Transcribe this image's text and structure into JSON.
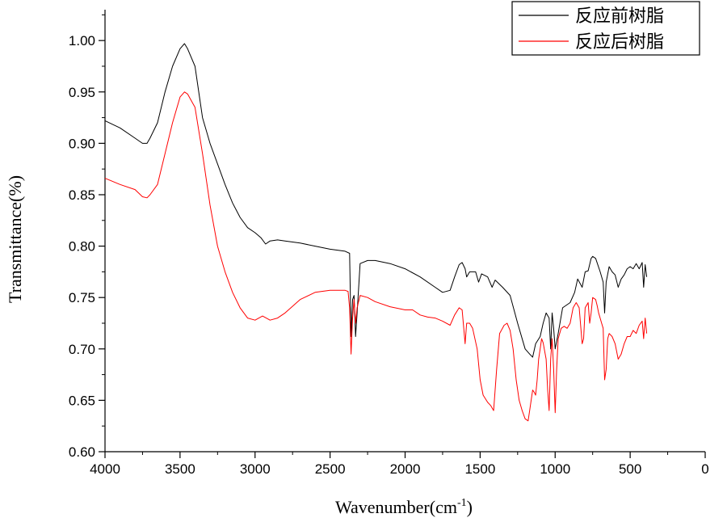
{
  "chart_data": {
    "type": "line",
    "xlabel": "Wavenumber(cm",
    "xlabel_sup": "-1",
    "xlabel_close": ")",
    "ylabel": "Transmittance(%)",
    "xlim": [
      4000,
      0
    ],
    "ylim": [
      0.6,
      1.03
    ],
    "x_ticks": [
      "4000",
      "3500",
      "3000",
      "2500",
      "2000",
      "1500",
      "1000",
      "500",
      "0"
    ],
    "y_ticks": [
      "0.60",
      "0.65",
      "0.70",
      "0.75",
      "0.80",
      "0.85",
      "0.90",
      "0.95",
      "1.00"
    ],
    "legend_position": "top-right",
    "series": [
      {
        "name": "反应前树脂",
        "color": "#000000",
        "points": [
          [
            4000,
            0.922
          ],
          [
            3900,
            0.915
          ],
          [
            3800,
            0.905
          ],
          [
            3750,
            0.9
          ],
          [
            3720,
            0.9
          ],
          [
            3700,
            0.905
          ],
          [
            3650,
            0.92
          ],
          [
            3600,
            0.95
          ],
          [
            3550,
            0.975
          ],
          [
            3500,
            0.992
          ],
          [
            3470,
            0.997
          ],
          [
            3450,
            0.992
          ],
          [
            3400,
            0.975
          ],
          [
            3350,
            0.925
          ],
          [
            3300,
            0.9
          ],
          [
            3250,
            0.88
          ],
          [
            3200,
            0.86
          ],
          [
            3150,
            0.842
          ],
          [
            3100,
            0.828
          ],
          [
            3050,
            0.818
          ],
          [
            3000,
            0.813
          ],
          [
            2960,
            0.808
          ],
          [
            2930,
            0.802
          ],
          [
            2900,
            0.805
          ],
          [
            2850,
            0.806
          ],
          [
            2800,
            0.805
          ],
          [
            2700,
            0.803
          ],
          [
            2600,
            0.8
          ],
          [
            2500,
            0.797
          ],
          [
            2400,
            0.795
          ],
          [
            2370,
            0.793
          ],
          [
            2360,
            0.712
          ],
          [
            2350,
            0.748
          ],
          [
            2340,
            0.752
          ],
          [
            2330,
            0.712
          ],
          [
            2320,
            0.735
          ],
          [
            2300,
            0.783
          ],
          [
            2250,
            0.786
          ],
          [
            2200,
            0.786
          ],
          [
            2100,
            0.783
          ],
          [
            2000,
            0.778
          ],
          [
            1900,
            0.77
          ],
          [
            1800,
            0.76
          ],
          [
            1750,
            0.755
          ],
          [
            1700,
            0.757
          ],
          [
            1670,
            0.77
          ],
          [
            1640,
            0.782
          ],
          [
            1620,
            0.784
          ],
          [
            1600,
            0.778
          ],
          [
            1590,
            0.77
          ],
          [
            1570,
            0.775
          ],
          [
            1530,
            0.775
          ],
          [
            1510,
            0.765
          ],
          [
            1490,
            0.773
          ],
          [
            1450,
            0.77
          ],
          [
            1420,
            0.76
          ],
          [
            1400,
            0.767
          ],
          [
            1350,
            0.76
          ],
          [
            1300,
            0.752
          ],
          [
            1250,
            0.725
          ],
          [
            1200,
            0.7
          ],
          [
            1170,
            0.695
          ],
          [
            1150,
            0.692
          ],
          [
            1130,
            0.705
          ],
          [
            1100,
            0.712
          ],
          [
            1080,
            0.725
          ],
          [
            1060,
            0.735
          ],
          [
            1040,
            0.73
          ],
          [
            1030,
            0.7
          ],
          [
            1020,
            0.735
          ],
          [
            1010,
            0.72
          ],
          [
            1000,
            0.7
          ],
          [
            980,
            0.715
          ],
          [
            950,
            0.74
          ],
          [
            900,
            0.745
          ],
          [
            870,
            0.755
          ],
          [
            850,
            0.768
          ],
          [
            820,
            0.76
          ],
          [
            800,
            0.775
          ],
          [
            780,
            0.776
          ],
          [
            760,
            0.788
          ],
          [
            750,
            0.79
          ],
          [
            730,
            0.788
          ],
          [
            700,
            0.775
          ],
          [
            680,
            0.765
          ],
          [
            670,
            0.735
          ],
          [
            660,
            0.765
          ],
          [
            640,
            0.78
          ],
          [
            620,
            0.775
          ],
          [
            600,
            0.772
          ],
          [
            580,
            0.76
          ],
          [
            560,
            0.768
          ],
          [
            540,
            0.772
          ],
          [
            520,
            0.778
          ],
          [
            500,
            0.78
          ],
          [
            480,
            0.778
          ],
          [
            460,
            0.783
          ],
          [
            440,
            0.778
          ],
          [
            420,
            0.784
          ],
          [
            410,
            0.76
          ],
          [
            400,
            0.782
          ],
          [
            390,
            0.77
          ]
        ]
      },
      {
        "name": "反应后树脂",
        "color": "#ff0000",
        "points": [
          [
            4000,
            0.866
          ],
          [
            3900,
            0.86
          ],
          [
            3800,
            0.855
          ],
          [
            3750,
            0.848
          ],
          [
            3720,
            0.847
          ],
          [
            3700,
            0.85
          ],
          [
            3650,
            0.86
          ],
          [
            3600,
            0.89
          ],
          [
            3550,
            0.92
          ],
          [
            3500,
            0.945
          ],
          [
            3470,
            0.95
          ],
          [
            3450,
            0.948
          ],
          [
            3400,
            0.935
          ],
          [
            3350,
            0.89
          ],
          [
            3300,
            0.84
          ],
          [
            3250,
            0.8
          ],
          [
            3200,
            0.775
          ],
          [
            3150,
            0.755
          ],
          [
            3100,
            0.74
          ],
          [
            3050,
            0.73
          ],
          [
            3000,
            0.728
          ],
          [
            2950,
            0.732
          ],
          [
            2900,
            0.728
          ],
          [
            2850,
            0.73
          ],
          [
            2800,
            0.735
          ],
          [
            2700,
            0.748
          ],
          [
            2600,
            0.755
          ],
          [
            2500,
            0.757
          ],
          [
            2400,
            0.757
          ],
          [
            2380,
            0.756
          ],
          [
            2370,
            0.74
          ],
          [
            2360,
            0.695
          ],
          [
            2350,
            0.73
          ],
          [
            2340,
            0.748
          ],
          [
            2330,
            0.725
          ],
          [
            2320,
            0.74
          ],
          [
            2300,
            0.752
          ],
          [
            2250,
            0.75
          ],
          [
            2200,
            0.746
          ],
          [
            2100,
            0.741
          ],
          [
            2000,
            0.738
          ],
          [
            1950,
            0.738
          ],
          [
            1900,
            0.733
          ],
          [
            1850,
            0.731
          ],
          [
            1800,
            0.73
          ],
          [
            1750,
            0.727
          ],
          [
            1700,
            0.723
          ],
          [
            1670,
            0.733
          ],
          [
            1640,
            0.74
          ],
          [
            1620,
            0.738
          ],
          [
            1610,
            0.722
          ],
          [
            1600,
            0.705
          ],
          [
            1590,
            0.725
          ],
          [
            1570,
            0.725
          ],
          [
            1550,
            0.72
          ],
          [
            1520,
            0.7
          ],
          [
            1500,
            0.67
          ],
          [
            1480,
            0.655
          ],
          [
            1450,
            0.648
          ],
          [
            1430,
            0.645
          ],
          [
            1410,
            0.64
          ],
          [
            1390,
            0.68
          ],
          [
            1370,
            0.715
          ],
          [
            1340,
            0.723
          ],
          [
            1320,
            0.725
          ],
          [
            1300,
            0.718
          ],
          [
            1280,
            0.7
          ],
          [
            1260,
            0.67
          ],
          [
            1240,
            0.65
          ],
          [
            1220,
            0.64
          ],
          [
            1200,
            0.632
          ],
          [
            1180,
            0.63
          ],
          [
            1170,
            0.64
          ],
          [
            1150,
            0.66
          ],
          [
            1140,
            0.658
          ],
          [
            1130,
            0.655
          ],
          [
            1120,
            0.67
          ],
          [
            1110,
            0.69
          ],
          [
            1100,
            0.7
          ],
          [
            1090,
            0.71
          ],
          [
            1080,
            0.706
          ],
          [
            1060,
            0.69
          ],
          [
            1050,
            0.66
          ],
          [
            1040,
            0.64
          ],
          [
            1030,
            0.69
          ],
          [
            1020,
            0.71
          ],
          [
            1010,
            0.68
          ],
          [
            1000,
            0.638
          ],
          [
            990,
            0.68
          ],
          [
            980,
            0.71
          ],
          [
            960,
            0.72
          ],
          [
            940,
            0.722
          ],
          [
            920,
            0.72
          ],
          [
            900,
            0.725
          ],
          [
            880,
            0.74
          ],
          [
            860,
            0.745
          ],
          [
            840,
            0.74
          ],
          [
            820,
            0.705
          ],
          [
            810,
            0.71
          ],
          [
            800,
            0.74
          ],
          [
            780,
            0.745
          ],
          [
            770,
            0.725
          ],
          [
            760,
            0.735
          ],
          [
            750,
            0.75
          ],
          [
            730,
            0.748
          ],
          [
            720,
            0.742
          ],
          [
            710,
            0.735
          ],
          [
            690,
            0.725
          ],
          [
            680,
            0.72
          ],
          [
            670,
            0.67
          ],
          [
            660,
            0.68
          ],
          [
            650,
            0.71
          ],
          [
            640,
            0.715
          ],
          [
            620,
            0.712
          ],
          [
            600,
            0.705
          ],
          [
            580,
            0.69
          ],
          [
            560,
            0.695
          ],
          [
            540,
            0.705
          ],
          [
            520,
            0.712
          ],
          [
            500,
            0.712
          ],
          [
            480,
            0.718
          ],
          [
            460,
            0.715
          ],
          [
            440,
            0.723
          ],
          [
            420,
            0.727
          ],
          [
            410,
            0.71
          ],
          [
            400,
            0.73
          ],
          [
            390,
            0.715
          ]
        ]
      }
    ]
  }
}
